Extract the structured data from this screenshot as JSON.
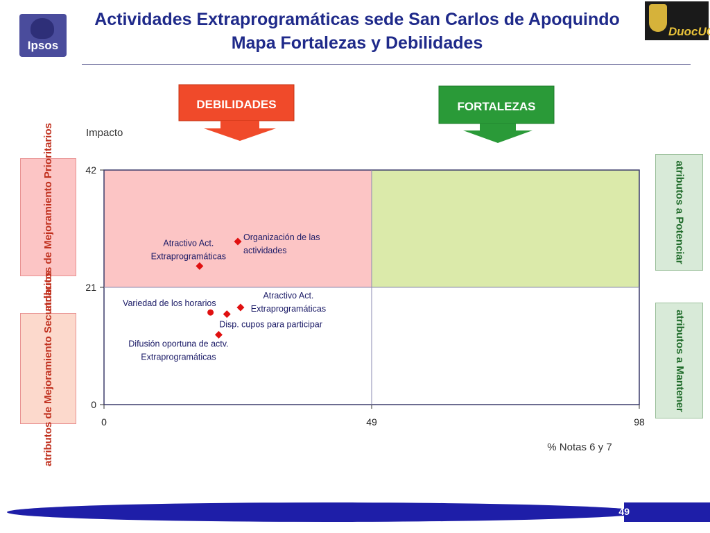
{
  "header": {
    "title_line1": "Actividades Extraprogramáticas sede San Carlos de Apoquindo",
    "title_line2": "Mapa Fortalezas y Debilidades",
    "ipsos_logo_text": "Ipsos",
    "duoc_logo_text": "DuocUC"
  },
  "callouts": {
    "debilidades": "DEBILIDADES",
    "fortalezas": "FORTALEZAS"
  },
  "side_labels": {
    "top_left": "atributos de Mejoramiento Prioritarios",
    "bottom_left": "atributos de Mejoramiento Secundarios",
    "top_right": "atributos a Potenciar",
    "bottom_right": "atributos a Mantener"
  },
  "chart_data": {
    "type": "scatter",
    "ylabel": "Impacto",
    "xlabel": "% Notas 6 y 7",
    "xlim": [
      0,
      98
    ],
    "ylim": [
      0,
      42
    ],
    "x_ticks": [
      0,
      49,
      98
    ],
    "y_ticks": [
      0,
      21,
      42
    ],
    "x_threshold": 49,
    "y_threshold": 21,
    "quadrant_colors": {
      "top_left": "#fcc5c5",
      "top_right": "#dbeaaa",
      "bottom_left": "#ffffff",
      "bottom_right": "#ffffff"
    },
    "points": [
      {
        "label_lines": [
          "Organización de las",
          "actividades"
        ],
        "x": 24.5,
        "y": 29.2,
        "marker": "diamond"
      },
      {
        "label_lines": [
          "Atractivo Act.",
          "Extraprogramáticas"
        ],
        "x": 17.5,
        "y": 24.8,
        "marker": "diamond"
      },
      {
        "label_lines": [
          "Atractivo Act.",
          "Extraprogramáticas"
        ],
        "x": 25.0,
        "y": 17.4,
        "marker": "diamond"
      },
      {
        "label_lines": [
          "Variedad de los horarios"
        ],
        "x": 19.5,
        "y": 16.5,
        "marker": "circle"
      },
      {
        "label_lines": [
          "Disp. cupos para participar"
        ],
        "x": 22.5,
        "y": 16.2,
        "marker": "diamond"
      },
      {
        "label_lines": [
          "Difusión oportuna de actv.",
          "Extraprogramáticas"
        ],
        "x": 21.0,
        "y": 12.5,
        "marker": "diamond"
      }
    ],
    "point_color": "#e01010"
  },
  "footer": {
    "page_number": "49"
  }
}
